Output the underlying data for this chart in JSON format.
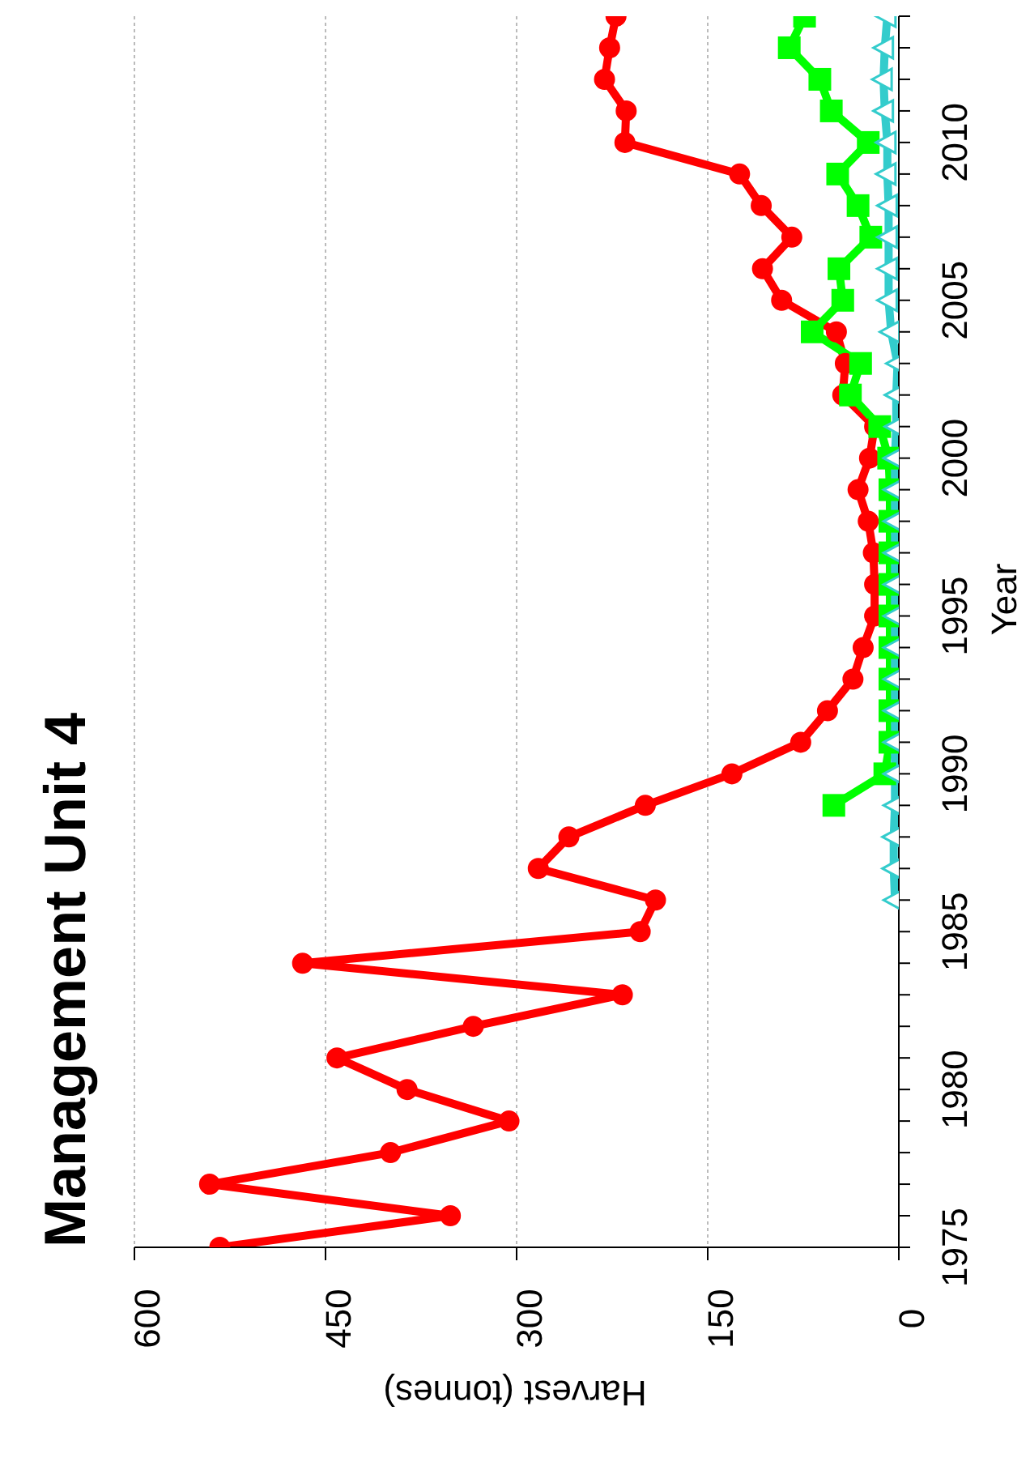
{
  "chart_data": {
    "type": "line",
    "orientation": "horizontal",
    "title": "Management Unit 4",
    "xlabel": "Harvest (tonnes)",
    "ylabel": "Year",
    "x": [
      1975,
      1976,
      1977,
      1978,
      1979,
      1980,
      1981,
      1982,
      1983,
      1984,
      1985,
      1986,
      1987,
      1988,
      1989,
      1990,
      1991,
      1992,
      1993,
      1994,
      1995,
      1996,
      1997,
      1998,
      1999,
      2000,
      2001,
      2002,
      2003,
      2004,
      2005,
      2006,
      2007,
      2008,
      2009,
      2010,
      2011,
      2012,
      2013,
      2014
    ],
    "series": [
      {
        "color": "#ff0000",
        "marker": "circle",
        "values": [
          533,
          352,
          541,
          399,
          306,
          386,
          441,
          334,
          217,
          468,
          203,
          191,
          283,
          259,
          199,
          131,
          77,
          56,
          36,
          28,
          19,
          19,
          20,
          24,
          32,
          23,
          19,
          44,
          42,
          49,
          92,
          107,
          84,
          108,
          125,
          215,
          214,
          231,
          227,
          222
        ]
      },
      {
        "color": "#00ff00",
        "marker": "square",
        "values": [
          null,
          null,
          null,
          null,
          null,
          null,
          null,
          null,
          null,
          null,
          null,
          null,
          null,
          null,
          51,
          11,
          7,
          7,
          7,
          7,
          7,
          7,
          7,
          7,
          7,
          8,
          15,
          38,
          30,
          68,
          44,
          47,
          22,
          32,
          48,
          24,
          53,
          62,
          86,
          74
        ]
      },
      {
        "color": "#33cccc",
        "marker": "triangle",
        "values": [
          null,
          null,
          null,
          null,
          null,
          null,
          null,
          null,
          null,
          null,
          null,
          3,
          4,
          4,
          3,
          3,
          3,
          3,
          3,
          3,
          3,
          3,
          3,
          3,
          3,
          3,
          2,
          2,
          1,
          6,
          8,
          8,
          8,
          8,
          9,
          9,
          11,
          12,
          11,
          9
        ]
      }
    ],
    "xlim": [
      600,
      0
    ],
    "xticks": [
      0,
      150,
      300,
      450,
      600
    ],
    "ylim": [
      1975,
      2014
    ],
    "yticks": [
      1975,
      {
        "value": 1976,
        "label": null
      },
      {
        "value": 1977,
        "label": null
      },
      {
        "value": 1978,
        "label": null
      },
      {
        "value": 1979,
        "label": null
      },
      1980,
      {
        "value": 1981,
        "label": null
      },
      {
        "value": 1982,
        "label": null
      },
      {
        "value": 1983,
        "label": null
      },
      {
        "value": 1984,
        "label": null
      },
      1985,
      {
        "value": 1986,
        "label": null
      },
      {
        "value": 1987,
        "label": null
      },
      {
        "value": 1988,
        "label": null
      },
      {
        "value": 1989,
        "label": null
      },
      1990,
      {
        "value": 1991,
        "label": null
      },
      {
        "value": 1992,
        "label": null
      },
      {
        "value": 1993,
        "label": null
      },
      {
        "value": 1994,
        "label": null
      },
      1995,
      {
        "value": 1996,
        "label": null
      },
      {
        "value": 1997,
        "label": null
      },
      {
        "value": 1998,
        "label": null
      },
      {
        "value": 1999,
        "label": null
      },
      2000,
      {
        "value": 2001,
        "label": null
      },
      {
        "value": 2002,
        "label": null
      },
      {
        "value": 2003,
        "label": null
      },
      {
        "value": 2004,
        "label": null
      },
      2005,
      {
        "value": 2006,
        "label": null
      },
      {
        "value": 2007,
        "label": null
      },
      {
        "value": 2008,
        "label": null
      },
      {
        "value": 2009,
        "label": null
      },
      2010,
      {
        "value": 2011,
        "label": null
      },
      {
        "value": 2012,
        "label": null
      },
      {
        "value": 2013,
        "label": null
      },
      {
        "value": 2014,
        "label": null
      }
    ],
    "grid": "x",
    "legend": false
  }
}
